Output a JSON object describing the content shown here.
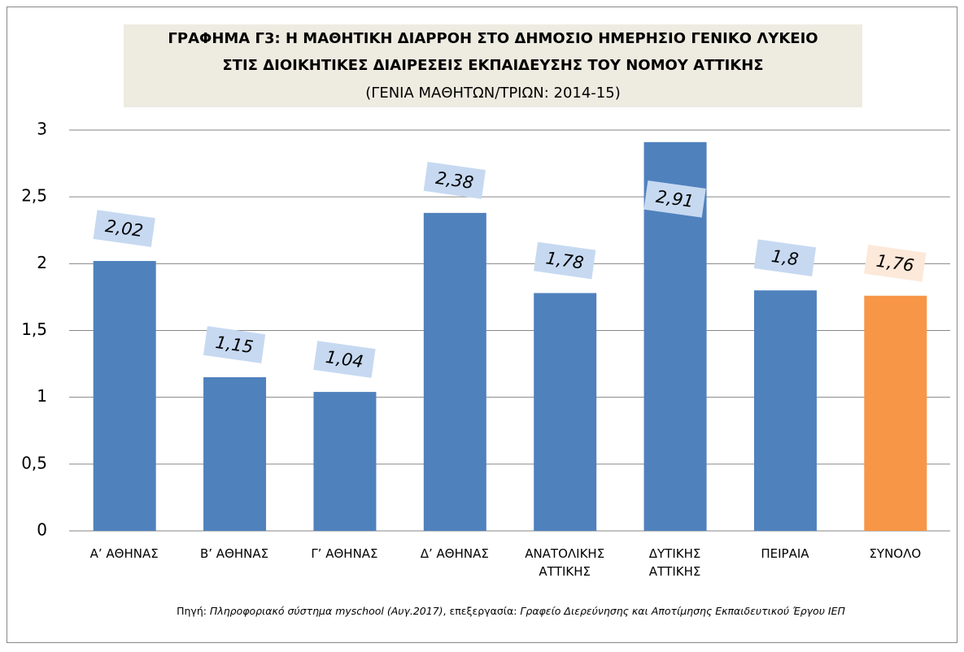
{
  "chart_data": {
    "type": "bar",
    "title": [
      "ΓΡΑΦΗΜΑ Γ3: Η ΜΑΘΗΤΙΚΗ ΔΙΑΡΡΟΗ ΣΤΟ ΔΗΜΟΣΙΟ ΗΜΕΡΗΣΙΟ ΓΕΝΙΚΟ ΛΥΚΕΙΟ",
      "ΣΤΙΣ ΔΙΟΙΚΗΤΙΚΕΣ ΔΙΑΙΡΕΣΕΙΣ ΕΚΠΑΙΔΕΥΣΗΣ ΤΟΥ ΝΟΜΟΥ ΑΤΤΙΚΗΣ"
    ],
    "subtitle": "(ΓΕΝΙΑ ΜΑΘΗΤΩΝ/ΤΡΙΩΝ: 2014-15)",
    "categories": [
      "Α’ ΑΘΗΝΑΣ",
      "Β’ ΑΘΗΝΑΣ",
      "Γ’ ΑΘΗΝΑΣ",
      "Δ’ ΑΘΗΝΑΣ",
      "ΑΝΑΤΟΛΙΚΗΣ\nΑΤΤΙΚΗΣ",
      "ΔΥΤΙΚΗΣ\nΑΤΤΙΚΗΣ",
      "ΠΕΙΡΑΙΑ",
      "ΣΥΝΟΛΟ"
    ],
    "values": [
      2.02,
      1.15,
      1.04,
      2.38,
      1.78,
      2.91,
      1.8,
      1.76
    ],
    "value_labels": [
      "2,02",
      "1,15",
      "1,04",
      "2,38",
      "1,78",
      "2,91",
      "1,8",
      "1,76"
    ],
    "colors": [
      "#4f81bd",
      "#4f81bd",
      "#4f81bd",
      "#4f81bd",
      "#4f81bd",
      "#4f81bd",
      "#4f81bd",
      "#f79646"
    ],
    "label_colors": [
      "#c6d9f1",
      "#c6d9f1",
      "#c6d9f1",
      "#c6d9f1",
      "#c6d9f1",
      "#c6d9f1",
      "#c6d9f1",
      "#fde9d9"
    ],
    "ylim": [
      0,
      3
    ],
    "yticks": [
      0,
      {
        "value": 0.5,
        "label": "0,5"
      },
      1,
      {
        "value": 1.5,
        "label": "1,5"
      },
      2,
      {
        "value": 2.5,
        "label": "2,5"
      },
      3
    ],
    "grid": true,
    "source": [
      "Πηγή: ",
      "Πληροφοριακό σύστημα myschool (Αυγ.2017)",
      ", επεξεργασία: ",
      "Γραφείο Διερεύνησης και Αποτίμησης Εκπαιδευτικού Έργου ΙΕΠ"
    ]
  }
}
